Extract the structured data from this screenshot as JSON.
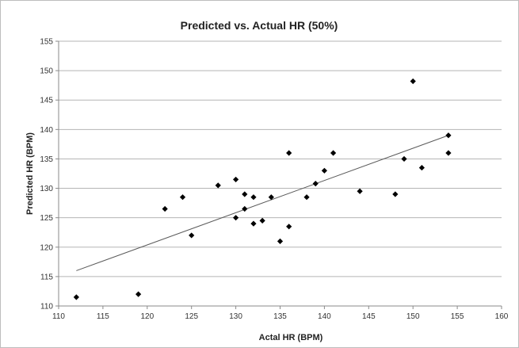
{
  "chart_data": {
    "type": "scatter",
    "title": "Predicted vs. Actual HR (50%)",
    "xlabel": "Actal HR (BPM)",
    "ylabel": "Predicted HR (BPM)",
    "xlim": [
      110,
      160
    ],
    "ylim": [
      110,
      155
    ],
    "xticks": [
      110,
      115,
      120,
      125,
      130,
      135,
      140,
      145,
      150,
      155,
      160
    ],
    "yticks": [
      110,
      115,
      120,
      125,
      130,
      135,
      140,
      145,
      150,
      155
    ],
    "grid": "horizontal",
    "legend": "none",
    "marker": "diamond",
    "colors": {
      "marker": "#000000",
      "trendline": "#5a5a5a",
      "grid": "#b5b5b5"
    },
    "series": [
      {
        "points": [
          {
            "x": 112,
            "y": 111.5
          },
          {
            "x": 119,
            "y": 112
          },
          {
            "x": 122,
            "y": 126.5
          },
          {
            "x": 124,
            "y": 128.5
          },
          {
            "x": 125,
            "y": 122
          },
          {
            "x": 128,
            "y": 130.5
          },
          {
            "x": 130,
            "y": 131.5
          },
          {
            "x": 130,
            "y": 125
          },
          {
            "x": 131,
            "y": 129
          },
          {
            "x": 131,
            "y": 126.5
          },
          {
            "x": 132,
            "y": 128.5
          },
          {
            "x": 132,
            "y": 124
          },
          {
            "x": 133,
            "y": 124.5
          },
          {
            "x": 134,
            "y": 128.5
          },
          {
            "x": 135,
            "y": 121
          },
          {
            "x": 136,
            "y": 136
          },
          {
            "x": 136,
            "y": 123.5
          },
          {
            "x": 138,
            "y": 128.5
          },
          {
            "x": 139,
            "y": 130.8
          },
          {
            "x": 140,
            "y": 133
          },
          {
            "x": 141,
            "y": 136
          },
          {
            "x": 144,
            "y": 129.5
          },
          {
            "x": 148,
            "y": 129
          },
          {
            "x": 149,
            "y": 135
          },
          {
            "x": 150,
            "y": 148.2
          },
          {
            "x": 151,
            "y": 133.5
          },
          {
            "x": 154,
            "y": 139
          },
          {
            "x": 154,
            "y": 136
          }
        ]
      }
    ],
    "trendline": {
      "type": "linear",
      "x1": 112,
      "y1": 116,
      "x2": 154,
      "y2": 139
    }
  }
}
